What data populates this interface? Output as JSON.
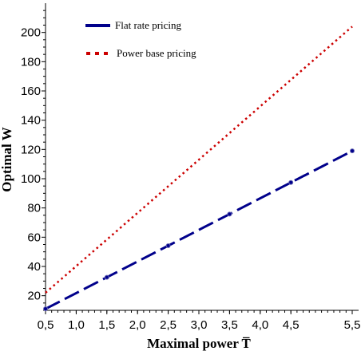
{
  "chart_data": {
    "type": "line",
    "xlabel": "Maximal power T̅",
    "ylabel": "Optimal W",
    "xlim": [
      0.5,
      5.5
    ],
    "ylim": [
      10,
      220
    ],
    "xticks": [
      "0,5",
      "1,0",
      "1,5",
      "2,0",
      "2,5",
      "3,0",
      "3,5",
      "4,0",
      "4,5",
      "5,5"
    ],
    "xtick_values": [
      0.5,
      1.0,
      1.5,
      2.0,
      2.5,
      3.0,
      3.5,
      4.0,
      4.5,
      5.5
    ],
    "yticks": [
      "20",
      "40",
      "60",
      "80",
      "100",
      "120",
      "140",
      "160",
      "180",
      "200"
    ],
    "ytick_values": [
      20,
      40,
      60,
      80,
      100,
      120,
      140,
      160,
      180,
      200
    ],
    "legend_position": "top-left",
    "series": [
      {
        "name": "Flat rate pricing",
        "color": "#00008b",
        "style": "dashed",
        "x": [
          0.5,
          1.0,
          1.5,
          2.0,
          2.5,
          3.0,
          3.5,
          4.0,
          4.5,
          5.0,
          5.5
        ],
        "values": [
          11,
          21.8,
          32.6,
          43.4,
          54.2,
          65,
          75.8,
          86.6,
          97.4,
          108.2,
          119
        ]
      },
      {
        "name": "Power base pricing",
        "color": "#cc0000",
        "style": "dotted",
        "x": [
          0.5,
          1.0,
          1.5,
          2.0,
          2.5,
          3.0,
          3.5,
          4.0,
          4.5,
          5.0,
          5.5
        ],
        "values": [
          22,
          40.2,
          58.4,
          76.6,
          94.8,
          113,
          131.2,
          149.4,
          167.6,
          185.8,
          204
        ]
      }
    ]
  }
}
